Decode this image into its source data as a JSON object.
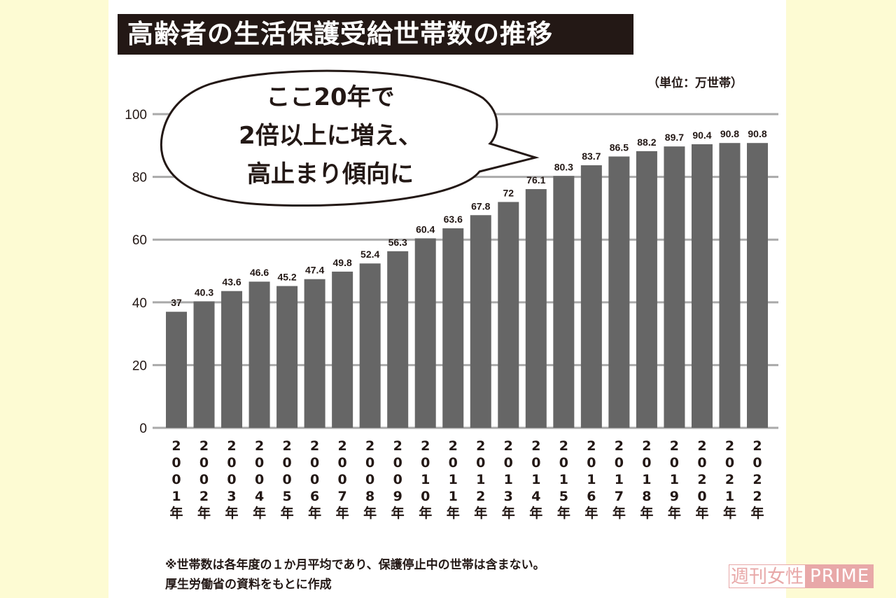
{
  "chart_data": {
    "type": "bar",
    "title": "高齢者の生活保護受給世帯数の推移",
    "unit": "（単位：万世帯）",
    "categories": [
      "2001年",
      "2002年",
      "2003年",
      "2004年",
      "2005年",
      "2006年",
      "2007年",
      "2008年",
      "2009年",
      "2010年",
      "2011年",
      "2012年",
      "2013年",
      "2014年",
      "2015年",
      "2016年",
      "2017年",
      "2018年",
      "2019年",
      "2020年",
      "2021年",
      "2022年"
    ],
    "values": [
      37,
      40.3,
      43.6,
      46.6,
      45.2,
      47.4,
      49.8,
      52.4,
      56.3,
      60.4,
      63.6,
      67.8,
      72,
      76.1,
      80.3,
      83.7,
      86.5,
      88.2,
      89.7,
      90.4,
      90.8,
      90.8
    ],
    "value_labels": [
      "37",
      "40.3",
      "43.6",
      "46.6",
      "45.2",
      "47.4",
      "49.8",
      "52.4",
      "56.3",
      "60.4",
      "63.6",
      "67.8",
      "72",
      "76.1",
      "80.3",
      "83.7",
      "86.5",
      "88.2",
      "89.7",
      "90.4",
      "90.8",
      "90.8"
    ],
    "ylim": [
      0,
      100
    ],
    "yticks": [
      "0",
      "20",
      "40",
      "60",
      "80",
      "100"
    ],
    "grid": true,
    "bar_color": "#666666",
    "annotation": [
      "ここ20年で",
      "2倍以上に増え、",
      "高止まり傾向に"
    ]
  },
  "notes": [
    "※世帯数は各年度の１か月平均であり、保護停止中の世帯は含まない。",
    "厚生労働省の資料をもとに作成"
  ],
  "watermark": {
    "part1": "週刊女性",
    "part2": "PRIME"
  }
}
